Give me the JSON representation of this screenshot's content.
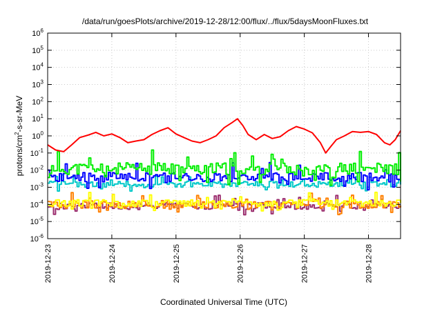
{
  "chart_data": {
    "type": "line",
    "title": "/data/run/goesPlots/archive/2019-12-28/12:00/flux/../flux/5daysMoonFluxes.txt",
    "xlabel": "Coordinated Universal Time (UTC)",
    "ylabel": "protons/cm2-s-sr-MeV",
    "ylabel_base": "protons/cm",
    "ylabel_sup": "2",
    "ylabel_rest": "-s-sr-MeV",
    "yscale": "log",
    "ylim": [
      1e-06,
      1000000.0
    ],
    "xlim": [
      "2019-12-23",
      "2019-12-28 12:00"
    ],
    "y_ticks": [
      {
        "base": "10",
        "exp": "-6",
        "value": 1e-06
      },
      {
        "base": "10",
        "exp": "-5",
        "value": 1e-05
      },
      {
        "base": "10",
        "exp": "-4",
        "value": 0.0001
      },
      {
        "base": "10",
        "exp": "-3",
        "value": 0.001
      },
      {
        "base": "10",
        "exp": "-2",
        "value": 0.01
      },
      {
        "base": "10",
        "exp": "-1",
        "value": 0.1
      },
      {
        "base": "10",
        "exp": "0",
        "value": 1.0
      },
      {
        "base": "10",
        "exp": "1",
        "value": 10.0
      },
      {
        "base": "10",
        "exp": "2",
        "value": 100.0
      },
      {
        "base": "10",
        "exp": "3",
        "value": 1000.0
      },
      {
        "base": "10",
        "exp": "4",
        "value": 10000.0
      },
      {
        "base": "10",
        "exp": "5",
        "value": 100000.0
      },
      {
        "base": "10",
        "exp": "6",
        "value": 1000000.0
      }
    ],
    "x_ticks": [
      "2019-12-23",
      "2019-12-24",
      "2019-12-25",
      "2019-12-26",
      "2019-12-27",
      "2019-12-28"
    ],
    "grid": true,
    "series": [
      {
        "color": "#ff0000",
        "values": [
          [
            "2019-12-23 00:00",
            0.3
          ],
          [
            "2019-12-23 03:00",
            0.15
          ],
          [
            "2019-12-23 06:00",
            0.12
          ],
          [
            "2019-12-23 09:00",
            0.3
          ],
          [
            "2019-12-23 12:00",
            0.8
          ],
          [
            "2019-12-23 15:00",
            1.1
          ],
          [
            "2019-12-23 18:00",
            1.6
          ],
          [
            "2019-12-23 21:00",
            1.0
          ],
          [
            "2019-12-24 00:00",
            1.3
          ],
          [
            "2019-12-24 03:00",
            0.8
          ],
          [
            "2019-12-24 06:00",
            0.4
          ],
          [
            "2019-12-24 09:00",
            0.5
          ],
          [
            "2019-12-24 12:00",
            0.6
          ],
          [
            "2019-12-24 15:00",
            1.2
          ],
          [
            "2019-12-24 18:00",
            2.0
          ],
          [
            "2019-12-24 21:00",
            3.0
          ],
          [
            "2019-12-25 00:00",
            1.3
          ],
          [
            "2019-12-25 03:00",
            0.8
          ],
          [
            "2019-12-25 06:00",
            0.5
          ],
          [
            "2019-12-25 09:00",
            0.4
          ],
          [
            "2019-12-25 12:00",
            0.6
          ],
          [
            "2019-12-25 15:00",
            1.0
          ],
          [
            "2019-12-25 18:00",
            3.0
          ],
          [
            "2019-12-25 21:00",
            6.0
          ],
          [
            "2019-12-25 23:00",
            10.0
          ],
          [
            "2019-12-26 01:00",
            4.0
          ],
          [
            "2019-12-26 03:00",
            1.2
          ],
          [
            "2019-12-26 06:00",
            0.6
          ],
          [
            "2019-12-26 09:00",
            1.2
          ],
          [
            "2019-12-26 12:00",
            0.7
          ],
          [
            "2019-12-26 15:00",
            0.9
          ],
          [
            "2019-12-26 18:00",
            2.0
          ],
          [
            "2019-12-26 21:00",
            3.5
          ],
          [
            "2019-12-27 00:00",
            2.5
          ],
          [
            "2019-12-27 03:00",
            1.5
          ],
          [
            "2019-12-27 06:00",
            0.4
          ],
          [
            "2019-12-27 08:00",
            0.1
          ],
          [
            "2019-12-27 10:00",
            0.25
          ],
          [
            "2019-12-27 12:00",
            0.6
          ],
          [
            "2019-12-27 15:00",
            1.0
          ],
          [
            "2019-12-27 18:00",
            1.8
          ],
          [
            "2019-12-27 21:00",
            1.6
          ],
          [
            "2019-12-28 00:00",
            1.8
          ],
          [
            "2019-12-28 03:00",
            1.2
          ],
          [
            "2019-12-28 06:00",
            0.4
          ],
          [
            "2019-12-28 08:00",
            0.3
          ],
          [
            "2019-12-28 10:00",
            0.6
          ],
          [
            "2019-12-28 12:00",
            2.0
          ]
        ]
      },
      {
        "color": "#00ee00",
        "baseline": 0.012,
        "spread": 0.7,
        "seed": 11
      },
      {
        "color": "#0000ff",
        "baseline": 0.004,
        "spread": 0.55,
        "seed": 23
      },
      {
        "color": "#00c8c8",
        "baseline": 0.0015,
        "spread": 0.35,
        "seed": 37
      },
      {
        "color": "#ffff00",
        "baseline": 0.00012,
        "spread": 0.4,
        "seed": 51
      },
      {
        "color": "#ff8000",
        "baseline": 0.0001,
        "spread": 0.45,
        "seed": 67
      },
      {
        "color": "#9b2d6e",
        "baseline": 8e-05,
        "spread": 0.4,
        "seed": 79
      }
    ]
  }
}
